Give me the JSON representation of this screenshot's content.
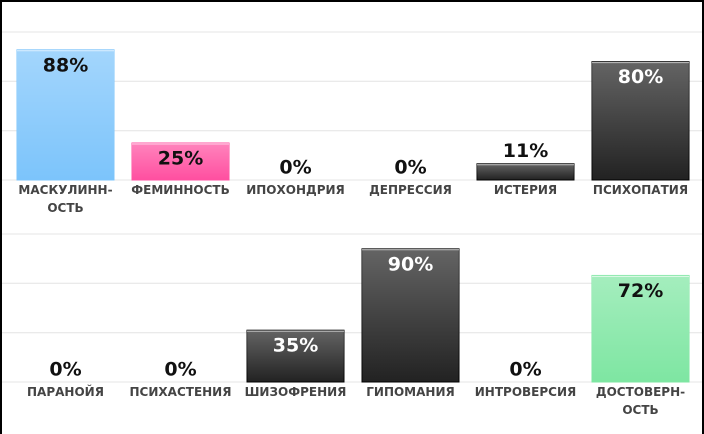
{
  "chart_data": [
    {
      "type": "bar",
      "categories": [
        "МАСКУЛИНН-\nОСТЬ",
        "ФЕМИННОСТЬ",
        "ИПОХОНДРИЯ",
        "ДЕПРЕССИЯ",
        "ИСТЕРИЯ",
        "ПСИХОПАТИЯ"
      ],
      "values": [
        88,
        25,
        0,
        0,
        11,
        80
      ],
      "value_labels": [
        "88%",
        "25%",
        "0%",
        "0%",
        "11%",
        "80%"
      ],
      "colors": [
        "#7cc4fb",
        "#ff4fa0",
        "#222222",
        "#222222",
        "#222222",
        "#222222"
      ],
      "ylim": [
        0,
        100
      ],
      "yticks": [
        0,
        33.3,
        66.7,
        100
      ],
      "grid": true
    },
    {
      "type": "bar",
      "categories": [
        "ПАРАНОЙЯ",
        "ПСИХАСТЕНИЯ",
        "ШИЗОФРЕНИЯ",
        "ГИПОМАНИЯ",
        "ИНТРОВЕРСИЯ",
        "ДОСТОВЕРН-\nОСТЬ"
      ],
      "values": [
        0,
        0,
        35,
        90,
        0,
        72
      ],
      "value_labels": [
        "0%",
        "0%",
        "35%",
        "90%",
        "0%",
        "72%"
      ],
      "colors": [
        "#222222",
        "#222222",
        "#222222",
        "#222222",
        "#222222",
        "#7ee6a2"
      ],
      "ylim": [
        0,
        100
      ],
      "yticks": [
        0,
        33.3,
        66.7,
        100
      ],
      "grid": true
    }
  ]
}
